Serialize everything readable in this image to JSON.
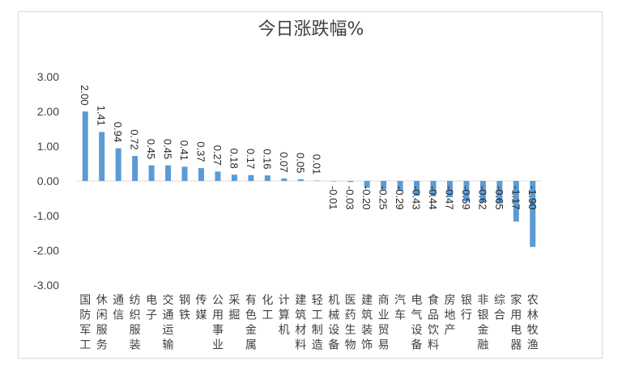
{
  "chart_data": {
    "type": "bar",
    "title": "今日涨跌幅%",
    "xlabel": "",
    "ylabel": "",
    "ylim": [
      -3.0,
      3.0
    ],
    "yticks": [
      "3.00",
      "2.00",
      "1.00",
      "0.00",
      "-1.00",
      "-2.00",
      "-3.00"
    ],
    "grid": false,
    "legend": "none",
    "bar_color": "#5b9bd5",
    "categories": [
      "国防军工",
      "休闲服务",
      "通信",
      "纺织服装",
      "电子",
      "交通运输",
      "钢铁",
      "传媒",
      "公用事业",
      "采掘",
      "有色金属",
      "化工",
      "计算机",
      "建筑材料",
      "轻工制造",
      "机械设备",
      "医药生物",
      "建筑装饰",
      "商业贸易",
      "汽车",
      "电气设备",
      "食品饮料",
      "房地产",
      "银行",
      "非银金融",
      "综合",
      "家用电器",
      "农林牧渔"
    ],
    "values": [
      2.0,
      1.41,
      0.94,
      0.72,
      0.45,
      0.45,
      0.41,
      0.37,
      0.27,
      0.18,
      0.17,
      0.16,
      0.07,
      0.05,
      0.01,
      -0.01,
      -0.03,
      -0.2,
      -0.25,
      -0.29,
      -0.43,
      -0.44,
      -0.47,
      -0.59,
      -0.62,
      -0.65,
      -1.17,
      -1.9
    ],
    "labels": [
      "2.00",
      "1.41",
      "0.94",
      "0.72",
      "0.45",
      "0.45",
      "0.41",
      "0.37",
      "0.27",
      "0.18",
      "0.17",
      "0.16",
      "0.07",
      "0.05",
      "0.01",
      "-0.01",
      "-0.03",
      "-0.20",
      "-0.25",
      "-0.29",
      "-0.43",
      "-0.44",
      "-0.47",
      "-0.59",
      "-0.62",
      "-0.65",
      "-1.17",
      "-1.90"
    ]
  }
}
